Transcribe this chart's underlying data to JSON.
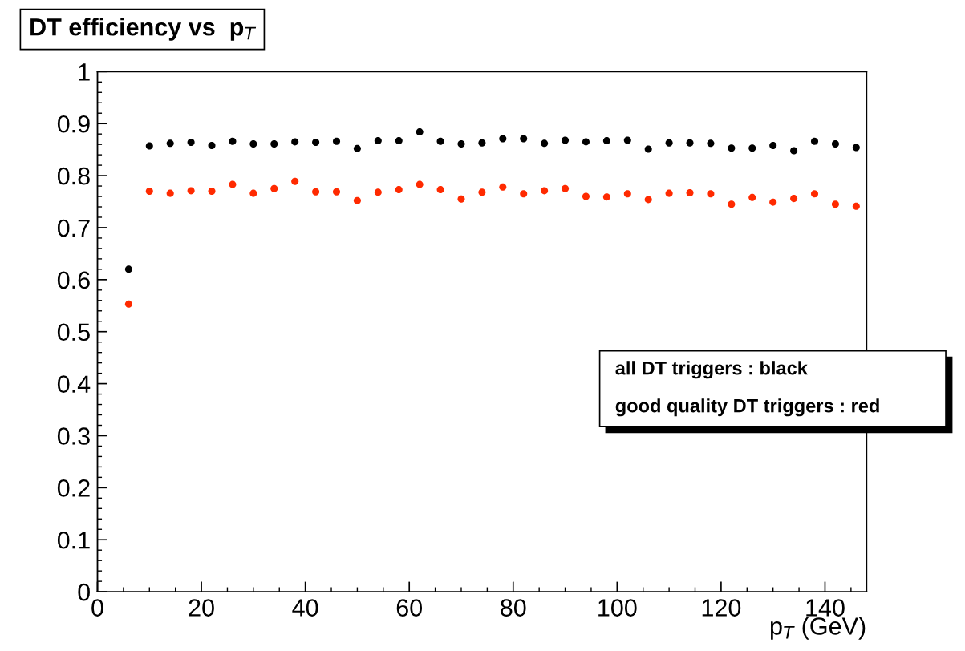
{
  "chart_data": {
    "type": "scatter",
    "title": "DT efficiency vs  p$_{T}$",
    "xlabel": "p$_{T}$ (GeV)",
    "x": [
      6,
      10,
      14,
      18,
      22,
      26,
      30,
      34,
      38,
      42,
      46,
      50,
      54,
      58,
      62,
      66,
      70,
      74,
      78,
      82,
      86,
      90,
      94,
      98,
      102,
      106,
      110,
      114,
      118,
      122,
      126,
      130,
      134,
      138,
      142,
      146
    ],
    "series": [
      {
        "color": "#000000",
        "values": [
          0.62,
          0.857,
          0.862,
          0.864,
          0.858,
          0.866,
          0.861,
          0.861,
          0.865,
          0.864,
          0.866,
          0.852,
          0.867,
          0.867,
          0.884,
          0.866,
          0.861,
          0.863,
          0.871,
          0.871,
          0.862,
          0.868,
          0.865,
          0.867,
          0.868,
          0.851,
          0.863,
          0.863,
          0.862,
          0.853,
          0.853,
          0.858,
          0.848,
          0.866,
          0.861,
          0.854
        ]
      },
      {
        "color": "#ff2a00",
        "values": [
          0.553,
          0.77,
          0.766,
          0.771,
          0.77,
          0.783,
          0.766,
          0.775,
          0.789,
          0.769,
          0.769,
          0.752,
          0.768,
          0.773,
          0.783,
          0.773,
          0.755,
          0.768,
          0.778,
          0.765,
          0.771,
          0.775,
          0.76,
          0.759,
          0.765,
          0.754,
          0.766,
          0.767,
          0.765,
          0.745,
          0.758,
          0.749,
          0.756,
          0.765,
          0.745,
          0.741
        ]
      }
    ],
    "xlim": [
      0,
      148
    ],
    "ylim": [
      0,
      1
    ],
    "xticks": [
      0,
      20,
      40,
      60,
      80,
      100,
      120,
      140
    ],
    "yticks": [
      0,
      {
        "value": 0.1,
        "label": "0.1"
      },
      {
        "value": 0.2,
        "label": "0.2"
      },
      {
        "value": 0.3,
        "label": "0.3"
      },
      {
        "value": 0.4,
        "label": "0.4"
      },
      {
        "value": 0.5,
        "label": "0.5"
      },
      {
        "value": 0.6,
        "label": "0.6"
      },
      {
        "value": 0.7,
        "label": "0.7"
      },
      {
        "value": 0.8,
        "label": "0.8"
      },
      {
        "value": 0.9,
        "label": "0.9"
      },
      1
    ],
    "marker": "circle",
    "grid": false,
    "legend": false,
    "annotations": [
      "all DT triggers : black",
      "good quality DT triggers : red"
    ]
  }
}
